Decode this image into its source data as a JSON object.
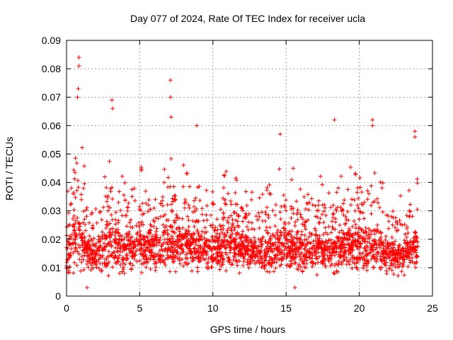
{
  "chart_data": {
    "type": "scatter",
    "title": "Day 077 of 2024, Rate Of TEC Index for receiver ucla",
    "xlabel": "GPS time / hours",
    "ylabel": "ROTI / TECUs",
    "xlim": [
      0,
      25
    ],
    "ylim": [
      0,
      0.09
    ],
    "x_ticks": [
      "0",
      "5",
      "10",
      "15",
      "20",
      "25"
    ],
    "y_ticks": [
      "0",
      "0.01",
      "0.02",
      "0.03",
      "0.04",
      "0.05",
      "0.06",
      "0.07",
      "0.08",
      "0.09"
    ],
    "grid": true,
    "marker": "+",
    "series_color": "#ff0000",
    "points_note_excluded": true,
    "notable_points": [
      {
        "x": 0.85,
        "y": 0.084
      },
      {
        "x": 0.85,
        "y": 0.081
      },
      {
        "x": 0.8,
        "y": 0.073
      },
      {
        "x": 0.75,
        "y": 0.07
      },
      {
        "x": 3.1,
        "y": 0.069
      },
      {
        "x": 3.15,
        "y": 0.066
      },
      {
        "x": 7.1,
        "y": 0.076
      },
      {
        "x": 7.1,
        "y": 0.07
      },
      {
        "x": 7.15,
        "y": 0.063
      },
      {
        "x": 8.9,
        "y": 0.06
      },
      {
        "x": 14.6,
        "y": 0.057
      },
      {
        "x": 18.3,
        "y": 0.062
      },
      {
        "x": 20.9,
        "y": 0.062
      },
      {
        "x": 20.9,
        "y": 0.06
      },
      {
        "x": 23.8,
        "y": 0.058
      },
      {
        "x": 23.8,
        "y": 0.056
      },
      {
        "x": 1.4,
        "y": 0.003
      },
      {
        "x": 15.6,
        "y": 0.003
      }
    ],
    "activity_profile": [
      {
        "x": 0.0,
        "center": 0.014,
        "spread": 0.012
      },
      {
        "x": 0.5,
        "center": 0.02,
        "spread": 0.018
      },
      {
        "x": 1.0,
        "center": 0.02,
        "spread": 0.016
      },
      {
        "x": 1.5,
        "center": 0.015,
        "spread": 0.01
      },
      {
        "x": 2.0,
        "center": 0.014,
        "spread": 0.008
      },
      {
        "x": 3.0,
        "center": 0.018,
        "spread": 0.016
      },
      {
        "x": 4.0,
        "center": 0.016,
        "spread": 0.012
      },
      {
        "x": 5.0,
        "center": 0.017,
        "spread": 0.013
      },
      {
        "x": 6.0,
        "center": 0.017,
        "spread": 0.012
      },
      {
        "x": 7.0,
        "center": 0.018,
        "spread": 0.015
      },
      {
        "x": 8.0,
        "center": 0.018,
        "spread": 0.013
      },
      {
        "x": 9.0,
        "center": 0.016,
        "spread": 0.011
      },
      {
        "x": 10.0,
        "center": 0.016,
        "spread": 0.012
      },
      {
        "x": 11.0,
        "center": 0.017,
        "spread": 0.013
      },
      {
        "x": 12.0,
        "center": 0.016,
        "spread": 0.011
      },
      {
        "x": 13.0,
        "center": 0.015,
        "spread": 0.01
      },
      {
        "x": 14.0,
        "center": 0.016,
        "spread": 0.012
      },
      {
        "x": 15.0,
        "center": 0.017,
        "spread": 0.014
      },
      {
        "x": 16.0,
        "center": 0.016,
        "spread": 0.012
      },
      {
        "x": 17.0,
        "center": 0.016,
        "spread": 0.012
      },
      {
        "x": 18.0,
        "center": 0.016,
        "spread": 0.012
      },
      {
        "x": 19.0,
        "center": 0.017,
        "spread": 0.013
      },
      {
        "x": 20.0,
        "center": 0.017,
        "spread": 0.013
      },
      {
        "x": 21.0,
        "center": 0.017,
        "spread": 0.014
      },
      {
        "x": 22.0,
        "center": 0.014,
        "spread": 0.01
      },
      {
        "x": 23.0,
        "center": 0.014,
        "spread": 0.01
      },
      {
        "x": 24.0,
        "center": 0.016,
        "spread": 0.012
      }
    ]
  }
}
